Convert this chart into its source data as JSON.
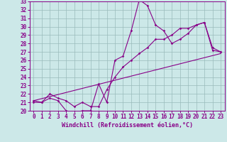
{
  "xlabel": "Windchill (Refroidissement éolien,°C)",
  "bg_color": "#cce8e8",
  "line_color": "#880088",
  "grid_color": "#99bbbb",
  "xlim": [
    -0.5,
    23.5
  ],
  "ylim": [
    20,
    33
  ],
  "xticks": [
    0,
    1,
    2,
    3,
    4,
    5,
    6,
    7,
    8,
    9,
    10,
    11,
    12,
    13,
    14,
    15,
    16,
    17,
    18,
    19,
    20,
    21,
    22,
    23
  ],
  "yticks": [
    20,
    21,
    22,
    23,
    24,
    25,
    26,
    27,
    28,
    29,
    30,
    31,
    32,
    33
  ],
  "series1_x": [
    0,
    1,
    2,
    3,
    4,
    5,
    6,
    7,
    8,
    9,
    10,
    11,
    12,
    13,
    14,
    15,
    16,
    17,
    18,
    19,
    20,
    21,
    22,
    23
  ],
  "series1_y": [
    21.0,
    21.0,
    21.5,
    21.2,
    20.0,
    19.8,
    20.0,
    20.0,
    23.2,
    21.0,
    26.0,
    26.5,
    29.5,
    33.2,
    32.5,
    30.2,
    29.5,
    28.0,
    28.5,
    29.2,
    30.2,
    30.5,
    27.5,
    27.0
  ],
  "series2_x": [
    0,
    1,
    2,
    3,
    4,
    5,
    6,
    7,
    8,
    9,
    10,
    11,
    12,
    13,
    14,
    15,
    16,
    17,
    18,
    19,
    20,
    21,
    22,
    23
  ],
  "series2_y": [
    21.2,
    21.0,
    22.0,
    21.5,
    21.2,
    20.5,
    21.0,
    20.5,
    20.5,
    22.5,
    24.0,
    25.2,
    26.0,
    26.8,
    27.5,
    28.5,
    28.5,
    29.0,
    29.8,
    29.8,
    30.2,
    30.5,
    27.2,
    27.0
  ],
  "trend_x": [
    0,
    23
  ],
  "trend_y": [
    21.2,
    26.8
  ],
  "tick_fontsize": 5.5,
  "xlabel_fontsize": 6.0
}
